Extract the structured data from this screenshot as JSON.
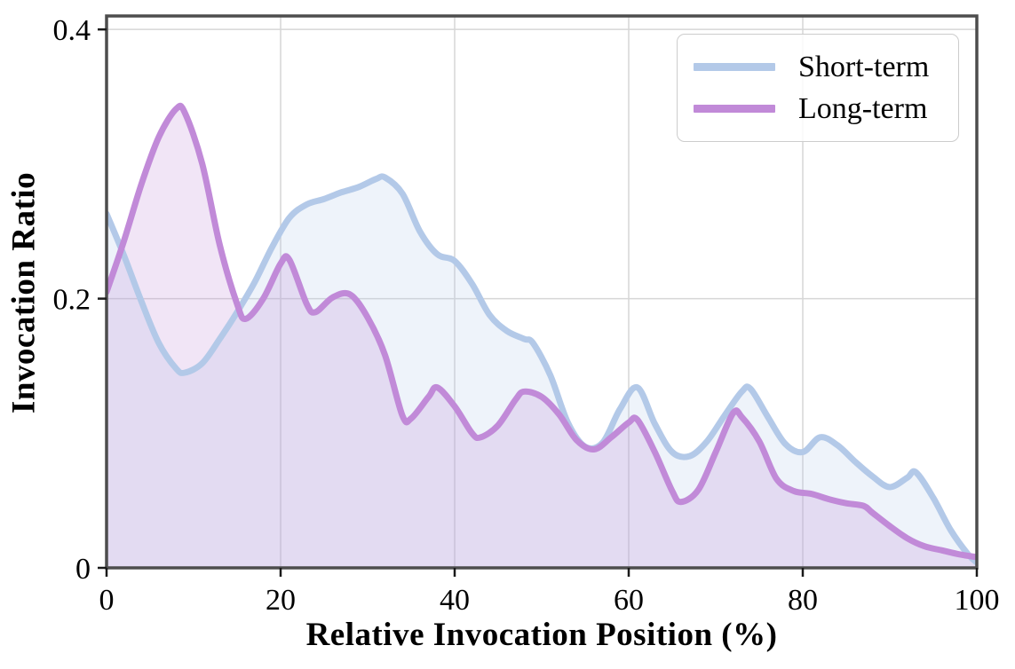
{
  "figure": {
    "background": "#ffffff",
    "axis_color": "#4d4d4d",
    "grid_color": "#d6d6d6",
    "tick_color": "#1a1a1a",
    "text_color": "#000000"
  },
  "chart_data": {
    "type": "area",
    "title": "",
    "xlabel": "Relative Invocation Position (%)",
    "ylabel": "Invocation Ratio",
    "xlim": [
      0,
      100
    ],
    "ylim": [
      0,
      0.41
    ],
    "x_ticks": [
      0,
      20,
      40,
      60,
      80,
      100
    ],
    "x_tick_labels": [
      "0",
      "20",
      "40",
      "60",
      "80",
      "100"
    ],
    "y_ticks": [
      0,
      0.2,
      0.4
    ],
    "y_tick_labels": [
      "0",
      "0.2",
      "0.4"
    ],
    "grid": true,
    "legend_position": "upper right",
    "series": [
      {
        "name": "Short-term",
        "color": "#b3c9e8",
        "fill_opacity": 0.22,
        "points": [
          [
            0,
            0.263
          ],
          [
            2,
            0.232
          ],
          [
            4,
            0.198
          ],
          [
            6,
            0.167
          ],
          [
            8,
            0.148
          ],
          [
            9,
            0.145
          ],
          [
            11,
            0.152
          ],
          [
            13,
            0.17
          ],
          [
            15,
            0.19
          ],
          [
            17,
            0.212
          ],
          [
            19,
            0.238
          ],
          [
            21,
            0.26
          ],
          [
            23,
            0.27
          ],
          [
            25,
            0.274
          ],
          [
            27,
            0.279
          ],
          [
            29,
            0.283
          ],
          [
            31,
            0.289
          ],
          [
            32,
            0.29
          ],
          [
            34,
            0.278
          ],
          [
            36,
            0.25
          ],
          [
            38,
            0.233
          ],
          [
            40,
            0.228
          ],
          [
            42,
            0.211
          ],
          [
            44,
            0.188
          ],
          [
            46,
            0.176
          ],
          [
            48,
            0.17
          ],
          [
            49,
            0.167
          ],
          [
            51,
            0.143
          ],
          [
            53,
            0.108
          ],
          [
            55,
            0.09
          ],
          [
            57,
            0.093
          ],
          [
            59,
            0.118
          ],
          [
            61,
            0.134
          ],
          [
            63,
            0.107
          ],
          [
            65,
            0.086
          ],
          [
            67,
            0.083
          ],
          [
            69,
            0.094
          ],
          [
            71,
            0.113
          ],
          [
            73,
            0.131
          ],
          [
            74,
            0.133
          ],
          [
            76,
            0.112
          ],
          [
            78,
            0.092
          ],
          [
            80,
            0.086
          ],
          [
            82,
            0.097
          ],
          [
            84,
            0.091
          ],
          [
            86,
            0.079
          ],
          [
            88,
            0.068
          ],
          [
            90,
            0.06
          ],
          [
            92,
            0.067
          ],
          [
            93,
            0.071
          ],
          [
            95,
            0.052
          ],
          [
            97,
            0.028
          ],
          [
            99,
            0.01
          ],
          [
            100,
            0.004
          ]
        ]
      },
      {
        "name": "Long-term",
        "color": "#c18ad8",
        "fill_opacity": 0.22,
        "points": [
          [
            0,
            0.205
          ],
          [
            2,
            0.243
          ],
          [
            4,
            0.285
          ],
          [
            6,
            0.32
          ],
          [
            8,
            0.341
          ],
          [
            9,
            0.338
          ],
          [
            11,
            0.3
          ],
          [
            13,
            0.24
          ],
          [
            15,
            0.196
          ],
          [
            16,
            0.185
          ],
          [
            18,
            0.2
          ],
          [
            20,
            0.226
          ],
          [
            21,
            0.229
          ],
          [
            23,
            0.196
          ],
          [
            24,
            0.19
          ],
          [
            26,
            0.201
          ],
          [
            28,
            0.203
          ],
          [
            30,
            0.186
          ],
          [
            32,
            0.158
          ],
          [
            34,
            0.113
          ],
          [
            35,
            0.111
          ],
          [
            37,
            0.127
          ],
          [
            38,
            0.134
          ],
          [
            40,
            0.12
          ],
          [
            42,
            0.1
          ],
          [
            43,
            0.097
          ],
          [
            45,
            0.106
          ],
          [
            47,
            0.125
          ],
          [
            48,
            0.131
          ],
          [
            50,
            0.127
          ],
          [
            52,
            0.114
          ],
          [
            54,
            0.095
          ],
          [
            56,
            0.088
          ],
          [
            58,
            0.097
          ],
          [
            60,
            0.108
          ],
          [
            61,
            0.11
          ],
          [
            63,
            0.086
          ],
          [
            65,
            0.057
          ],
          [
            66,
            0.049
          ],
          [
            68,
            0.058
          ],
          [
            70,
            0.086
          ],
          [
            72,
            0.115
          ],
          [
            73,
            0.112
          ],
          [
            75,
            0.094
          ],
          [
            77,
            0.066
          ],
          [
            79,
            0.057
          ],
          [
            81,
            0.055
          ],
          [
            83,
            0.051
          ],
          [
            85,
            0.048
          ],
          [
            87,
            0.046
          ],
          [
            88,
            0.041
          ],
          [
            90,
            0.031
          ],
          [
            92,
            0.022
          ],
          [
            94,
            0.016
          ],
          [
            96,
            0.013
          ],
          [
            98,
            0.01
          ],
          [
            100,
            0.008
          ]
        ]
      }
    ]
  }
}
